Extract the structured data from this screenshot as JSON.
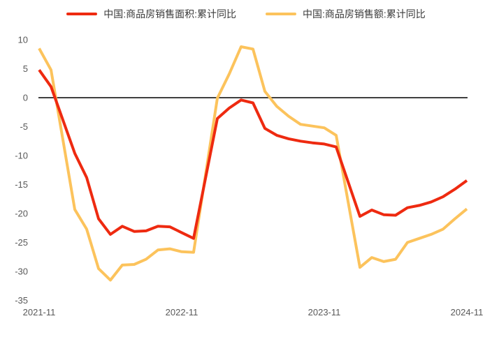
{
  "chart_data": {
    "type": "line",
    "title": "",
    "xlabel": "",
    "ylabel": "",
    "x": [
      "2021-11",
      "2021-12",
      "2022-02",
      "2022-03",
      "2022-04",
      "2022-05",
      "2022-06",
      "2022-07",
      "2022-08",
      "2022-09",
      "2022-10",
      "2022-11",
      "2022-12",
      "2023-02",
      "2023-03",
      "2023-04",
      "2023-05",
      "2023-06",
      "2023-07",
      "2023-08",
      "2023-09",
      "2023-10",
      "2023-11",
      "2023-12",
      "2024-02",
      "2024-03",
      "2024-04",
      "2024-05",
      "2024-06",
      "2024-07",
      "2024-08",
      "2024-09",
      "2024-10",
      "2024-11"
    ],
    "series": [
      {
        "name": "中国:商品房销售面积:累计同比",
        "color": "#ee2a10",
        "values": [
          4.8,
          1.9,
          -9.6,
          -13.8,
          -20.9,
          -23.6,
          -22.2,
          -23.1,
          -23.0,
          -22.2,
          -22.3,
          -23.3,
          -24.3,
          -3.6,
          -1.8,
          -0.4,
          -0.9,
          -5.3,
          -6.5,
          -7.1,
          -7.5,
          -7.8,
          -8.0,
          -8.5,
          -20.5,
          -19.4,
          -20.2,
          -20.3,
          -19.0,
          -18.6,
          -18.0,
          -17.1,
          -15.8,
          -14.3
        ]
      },
      {
        "name": "中国:商品房销售额:累计同比",
        "color": "#fcc35c",
        "values": [
          8.5,
          4.8,
          -19.3,
          -22.7,
          -29.5,
          -31.5,
          -28.9,
          -28.8,
          -27.9,
          -26.3,
          -26.1,
          -26.6,
          -26.7,
          -0.1,
          4.1,
          8.8,
          8.4,
          1.1,
          -1.5,
          -3.2,
          -4.6,
          -4.9,
          -5.2,
          -6.5,
          -29.3,
          -27.6,
          -28.3,
          -27.9,
          -25.0,
          -24.3,
          -23.6,
          -22.7,
          -20.9,
          -19.2
        ]
      }
    ],
    "ylim": [
      -35,
      10
    ],
    "yticks": [
      10,
      5,
      0,
      -5,
      -10,
      -15,
      -20,
      -25,
      -30,
      -35
    ],
    "xticks": [
      "2021-11",
      "2022-11",
      "2023-11",
      "2024-11"
    ],
    "grid": false,
    "legend_position": "top",
    "zero_line": true,
    "zero_line_color": "#3f3f3f",
    "axis_text_color": "#595959"
  }
}
